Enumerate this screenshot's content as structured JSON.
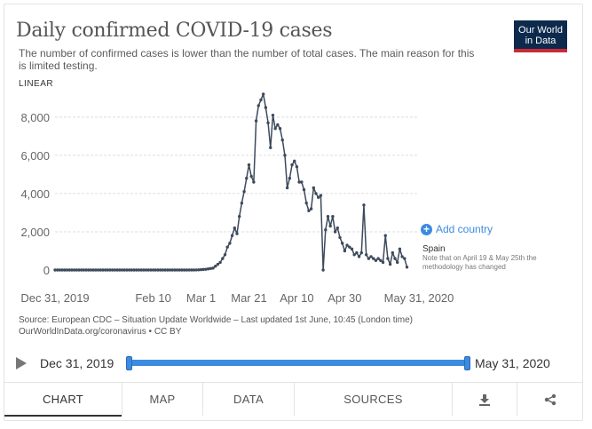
{
  "header": {
    "title": "Daily confirmed COVID-19 cases",
    "subtitle": "The number of confirmed cases is lower than the number of total cases. The main reason for this is limited testing.",
    "logo_line1": "Our World",
    "logo_line2": "in Data",
    "scale": "LINEAR"
  },
  "colors": {
    "line": "#3d4a5c",
    "grid": "#dddddd",
    "accent": "#3b8be0",
    "logo_bg": "#0d2a4c",
    "logo_bar": "#c92a36"
  },
  "controls": {
    "add_country": "Add country"
  },
  "series_label": {
    "name": "Spain",
    "note": "Note that on April 19 & May 25th the methodology has changed"
  },
  "source": {
    "line1": "Source: European CDC – Situation Update Worldwide – Last updated 1st June, 10:45 (London time)",
    "line2": "OurWorldInData.org/coronavirus • CC BY"
  },
  "timeline": {
    "start": "Dec 31, 2019",
    "end": "May 31, 2020"
  },
  "tabs": [
    {
      "label": "CHART"
    },
    {
      "label": "MAP"
    },
    {
      "label": "DATA"
    },
    {
      "label": "SOURCES"
    }
  ],
  "icons": {
    "download": "download-icon",
    "share": "share-icon",
    "play": "play-icon",
    "add": "plus-circle-icon"
  },
  "chart_data": {
    "type": "line",
    "title": "Daily confirmed COVID-19 cases",
    "xlabel": "",
    "ylabel": "",
    "x_start": "2019-12-31",
    "x_end": "2020-05-31",
    "ylim": [
      0,
      9200
    ],
    "yticks": [
      0,
      2000,
      4000,
      6000,
      8000
    ],
    "ytick_labels": [
      "0",
      "2,000",
      "4,000",
      "6,000",
      "8,000"
    ],
    "xtick_days": [
      0,
      41,
      61,
      81,
      101,
      121,
      152
    ],
    "xtick_labels": [
      "Dec 31, 2019",
      "Feb 10",
      "Mar 1",
      "Mar 21",
      "Apr 10",
      "Apr 30",
      "May 31, 2020"
    ],
    "grid": true,
    "series": [
      {
        "name": "Spain",
        "values": [
          0,
          0,
          0,
          0,
          0,
          0,
          0,
          0,
          0,
          0,
          0,
          0,
          0,
          0,
          0,
          0,
          0,
          0,
          0,
          0,
          0,
          0,
          0,
          0,
          0,
          0,
          0,
          0,
          0,
          0,
          0,
          0,
          0,
          0,
          0,
          0,
          0,
          0,
          0,
          0,
          0,
          0,
          0,
          0,
          0,
          0,
          0,
          0,
          0,
          0,
          0,
          0,
          0,
          0,
          0,
          0,
          1,
          1,
          2,
          5,
          10,
          20,
          30,
          40,
          60,
          80,
          100,
          200,
          300,
          400,
          600,
          800,
          1200,
          1400,
          1800,
          2200,
          1900,
          2800,
          3500,
          4100,
          4800,
          5500,
          4900,
          4600,
          7800,
          8600,
          8900,
          9200,
          8500,
          7700,
          6400,
          8100,
          7400,
          7600,
          7400,
          6800,
          6000,
          4300,
          4800,
          5500,
          5700,
          5400,
          4600,
          4600,
          4200,
          3500,
          3100,
          3200,
          4300,
          4000,
          3800,
          3900,
          0,
          2100,
          2800,
          2300,
          2800,
          2000,
          2200,
          1700,
          1400,
          1000,
          1300,
          1200,
          1100,
          800,
          900,
          700,
          900,
          3400,
          800,
          600,
          700,
          600,
          500,
          600,
          500,
          400,
          1800,
          600,
          300,
          900,
          600,
          400,
          1100,
          700,
          600,
          150
        ]
      }
    ]
  }
}
